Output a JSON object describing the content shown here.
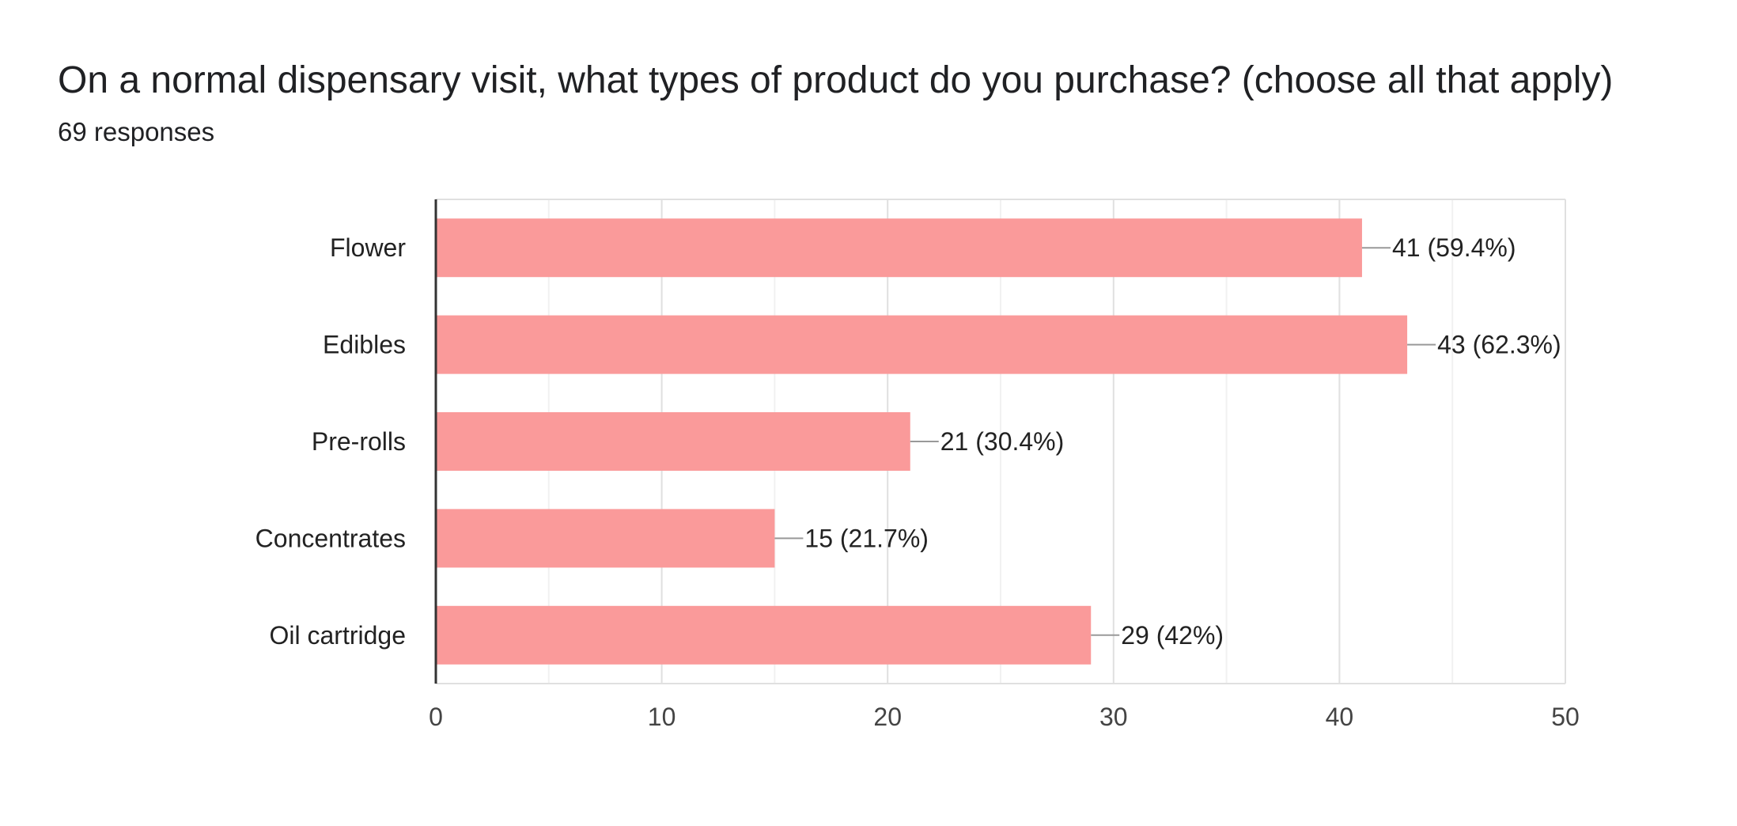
{
  "question": {
    "title": "On a normal dispensary visit, what types of product do you purchase? (choose all that apply)",
    "responses": "69 responses"
  },
  "colors": {
    "bar": "#fa9a9a",
    "text": "#202124"
  },
  "chart_data": {
    "type": "bar",
    "orientation": "horizontal",
    "title": "",
    "xlabel": "",
    "ylabel": "",
    "categories": [
      "Flower",
      "Edibles",
      "Pre-rolls",
      "Concentrates",
      "Oil cartridge"
    ],
    "values": [
      41,
      43,
      21,
      15,
      29
    ],
    "data_labels": [
      "41 (59.4%)",
      "43 (62.3%)",
      "21 (30.4%)",
      "15 (21.7%)",
      "29 (42%)"
    ],
    "xlim": [
      0,
      50
    ],
    "xticks": [
      "0",
      "10",
      "20",
      "30",
      "40",
      "50"
    ],
    "grid": true,
    "legend": "none"
  }
}
